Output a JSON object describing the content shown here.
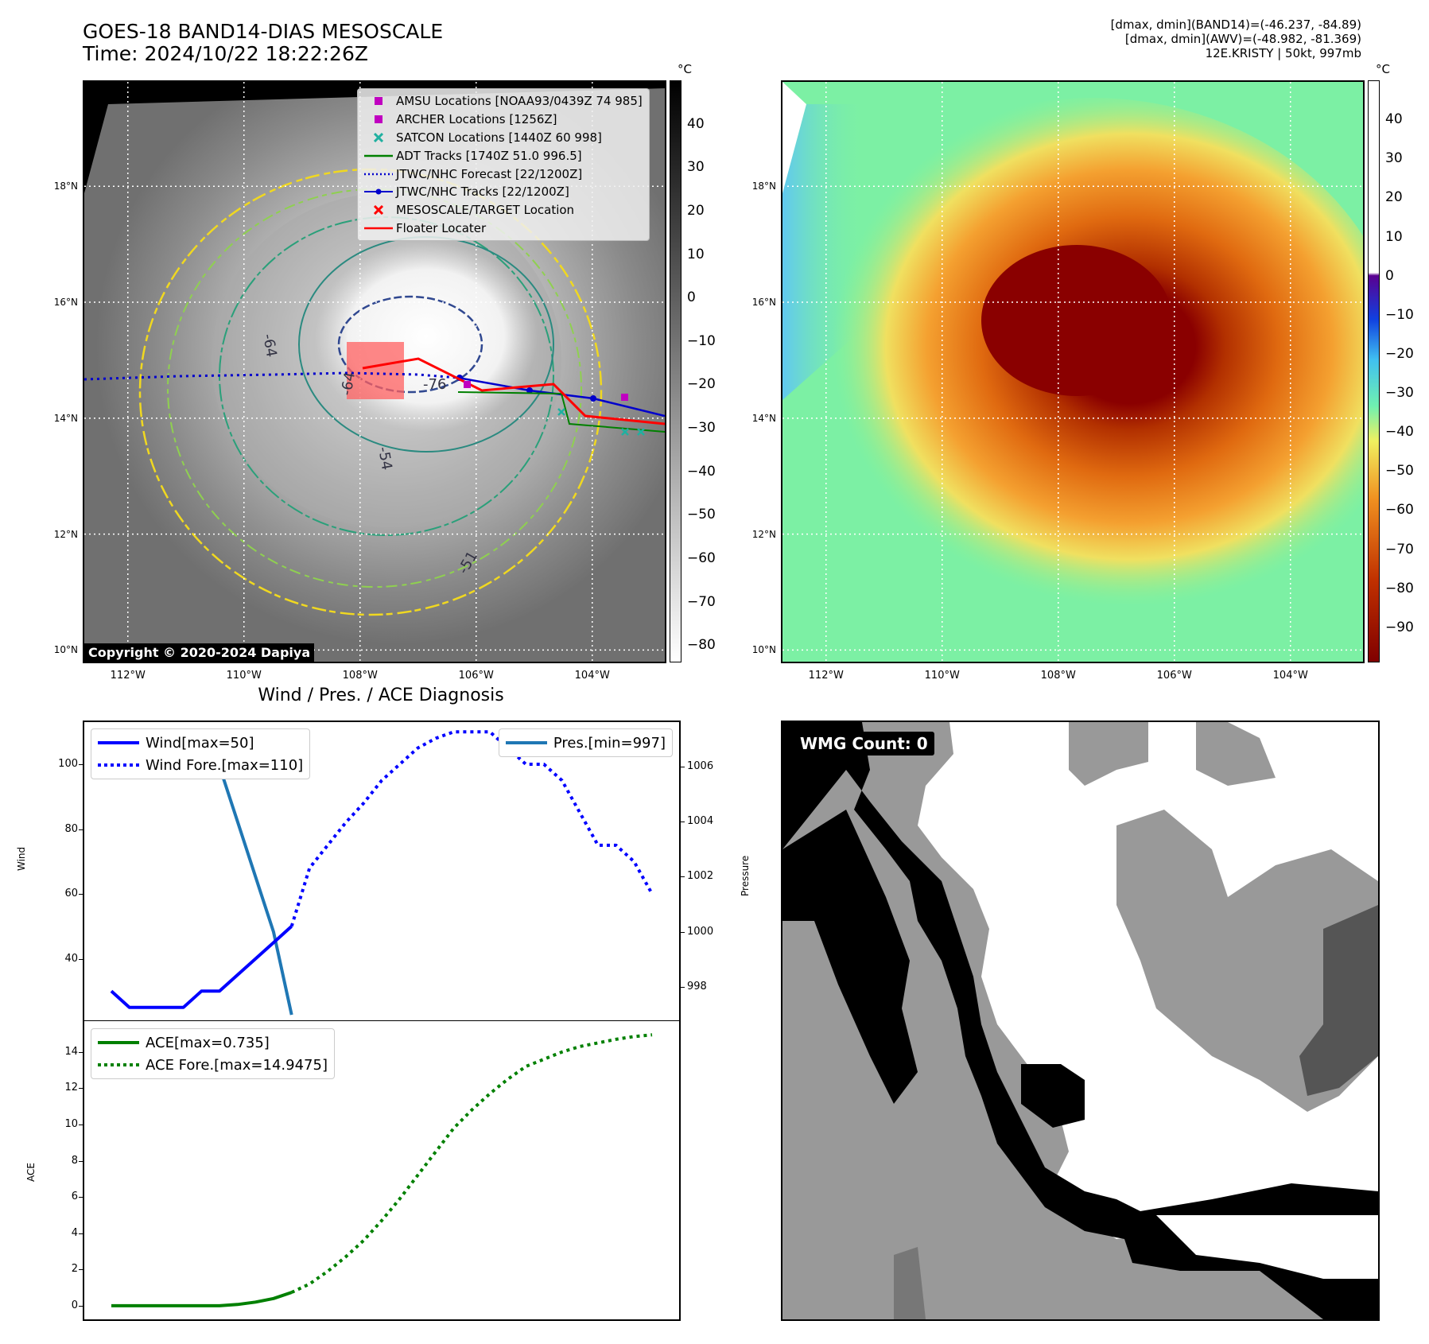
{
  "header": {
    "title_line1": "GOES-18 BAND14-DIAS MESOSCALE",
    "title_line2": "Time: 2024/10/22 18:22:26Z",
    "info_line1": "[dmax, dmin](BAND14)=(-46.237, -84.89)",
    "info_line2": "[dmax, dmin](AWV)=(-48.982, -81.369)",
    "info_line3": "12E.KRISTY | 50kt, 997mb"
  },
  "map_axes": {
    "lat_labels": [
      "18°N",
      "16°N",
      "14°N",
      "12°N",
      "10°N"
    ],
    "lat_values": [
      18,
      16,
      14,
      12,
      10
    ],
    "lon_labels": [
      "112°W",
      "110°W",
      "108°W",
      "106°W",
      "104°W"
    ],
    "lon_values": [
      -112,
      -110,
      -108,
      -106,
      -104
    ],
    "lon_range": [
      -112.75,
      -102.75
    ],
    "lat_range": [
      9.8,
      19.8
    ]
  },
  "ir_panel": {
    "legend": [
      {
        "label": "AMSU Locations [NOAA93/0439Z 74 985]",
        "symbol": "square",
        "color": "#c000c0"
      },
      {
        "label": "ARCHER Locations [1256Z]",
        "symbol": "square",
        "color": "#c000c0"
      },
      {
        "label": "SATCON Locations [1440Z 60 998]",
        "symbol": "x",
        "color": "#20b0a0"
      },
      {
        "label": "ADT Tracks [1740Z 51.0 996.5]",
        "symbol": "line",
        "color": "#008000"
      },
      {
        "label": "JTWC/NHC Forecast [22/1200Z]",
        "symbol": "dotted",
        "color": "#0000cc"
      },
      {
        "label": "JTWC/NHC Tracks [22/1200Z]",
        "symbol": "line-dot",
        "color": "#0000cc"
      },
      {
        "label": "MESOSCALE/TARGET Location",
        "symbol": "x",
        "color": "#ff0000"
      },
      {
        "label": "Floater Locater",
        "symbol": "line",
        "color": "#ff0000"
      }
    ],
    "contour_labels": [
      "-64",
      "-76",
      "-54",
      "-64",
      "-51"
    ],
    "copyright": "Copyright © 2020-2024 Dapiya",
    "colorbar_unit": "°C",
    "colorbar_ticks": [
      "40",
      "30",
      "20",
      "10",
      "0",
      "−10",
      "−20",
      "−30",
      "−40",
      "−50",
      "−60",
      "−70",
      "−80"
    ],
    "colorbar_range": [
      -84,
      50
    ]
  },
  "awv_panel": {
    "colorbar_unit": "°C",
    "colorbar_ticks": [
      "40",
      "30",
      "20",
      "10",
      "0",
      "−10",
      "−20",
      "−30",
      "−40",
      "−50",
      "−60",
      "−70",
      "−80",
      "−90"
    ],
    "colorbar_range": [
      -99,
      50
    ]
  },
  "diagnosis": {
    "title": "Wind / Pres. / ACE Diagnosis",
    "wind_ylabel": "Wind",
    "pressure_ylabel": "Pressure",
    "ace_ylabel": "ACE",
    "wind_legend": [
      "Wind[max=50]",
      "Wind Fore.[max=110]"
    ],
    "pres_legend": [
      "Pres.[min=997]"
    ],
    "ace_legend": [
      "ACE[max=0.735]",
      "ACE Fore.[max=14.9475]"
    ],
    "wind_yticks": [
      "100",
      "80",
      "60",
      "40"
    ],
    "pres_yticks": [
      "1006",
      "1004",
      "1002",
      "1000",
      "998"
    ],
    "ace_yticks": [
      "14",
      "12",
      "10",
      "8",
      "6",
      "4",
      "2",
      "0"
    ]
  },
  "chart_data": [
    {
      "type": "line",
      "title": "Wind / Pres. / ACE Diagnosis",
      "ylabel": "Wind",
      "ylim": [
        21,
        113
      ],
      "x": [
        0,
        1,
        2,
        3,
        4,
        5,
        6,
        7,
        8,
        9,
        10,
        11,
        12,
        13,
        14,
        15,
        16,
        17,
        18,
        19,
        20,
        21,
        22,
        23,
        24,
        25,
        26,
        27,
        28,
        29,
        30
      ],
      "series": [
        {
          "name": "Wind[max=50]",
          "color": "#0000ff",
          "style": "solid",
          "x": [
            0,
            1,
            2,
            3,
            4,
            5,
            6,
            7,
            8,
            9,
            10
          ],
          "values": [
            30,
            25,
            25,
            25,
            25,
            30,
            30,
            35,
            40,
            45,
            50
          ]
        },
        {
          "name": "Wind Fore.[max=110]",
          "color": "#0000ff",
          "style": "dotted",
          "x": [
            10,
            11,
            12,
            13,
            14,
            15,
            16,
            17,
            18,
            19,
            20,
            21,
            22,
            23,
            24,
            25,
            26,
            27,
            28,
            29,
            30
          ],
          "values": [
            50,
            68,
            75,
            82,
            88,
            95,
            100,
            105,
            108,
            110,
            110,
            110,
            105,
            100,
            100,
            95,
            85,
            75,
            75,
            70,
            60
          ]
        }
      ]
    },
    {
      "type": "line",
      "ylabel": "Pressure",
      "ylim": [
        996.8,
        1007.6
      ],
      "series": [
        {
          "name": "Pres.[min=997]",
          "color": "#1f77b4",
          "style": "solid",
          "x": [
            0,
            1,
            2,
            3,
            4,
            5,
            6,
            7,
            8,
            9,
            10
          ],
          "values": [
            1006,
            1006,
            1007,
            1007,
            1007,
            1006,
            1006,
            1004,
            1002,
            1000,
            997
          ]
        }
      ]
    },
    {
      "type": "line",
      "ylabel": "ACE",
      "ylim": [
        -0.75,
        15.7
      ],
      "series": [
        {
          "name": "ACE[max=0.735]",
          "color": "#008000",
          "style": "solid",
          "x": [
            0,
            1,
            2,
            3,
            4,
            5,
            6,
            7,
            8,
            9,
            10
          ],
          "values": [
            0,
            0,
            0,
            0,
            0,
            0,
            0,
            0.07,
            0.2,
            0.4,
            0.735
          ]
        },
        {
          "name": "ACE Fore.[max=14.9475]",
          "color": "#008000",
          "style": "dotted",
          "x": [
            10,
            11,
            12,
            13,
            14,
            15,
            16,
            17,
            18,
            19,
            20,
            21,
            22,
            23,
            24,
            25,
            26,
            27,
            28,
            29,
            30
          ],
          "values": [
            0.735,
            1.2,
            1.9,
            2.7,
            3.6,
            4.7,
            5.9,
            7.2,
            8.5,
            9.8,
            10.8,
            11.7,
            12.5,
            13.2,
            13.6,
            14.0,
            14.3,
            14.5,
            14.7,
            14.85,
            14.9475
          ]
        }
      ]
    }
  ],
  "wmg_panel": {
    "label": "WMG Count: 0"
  }
}
